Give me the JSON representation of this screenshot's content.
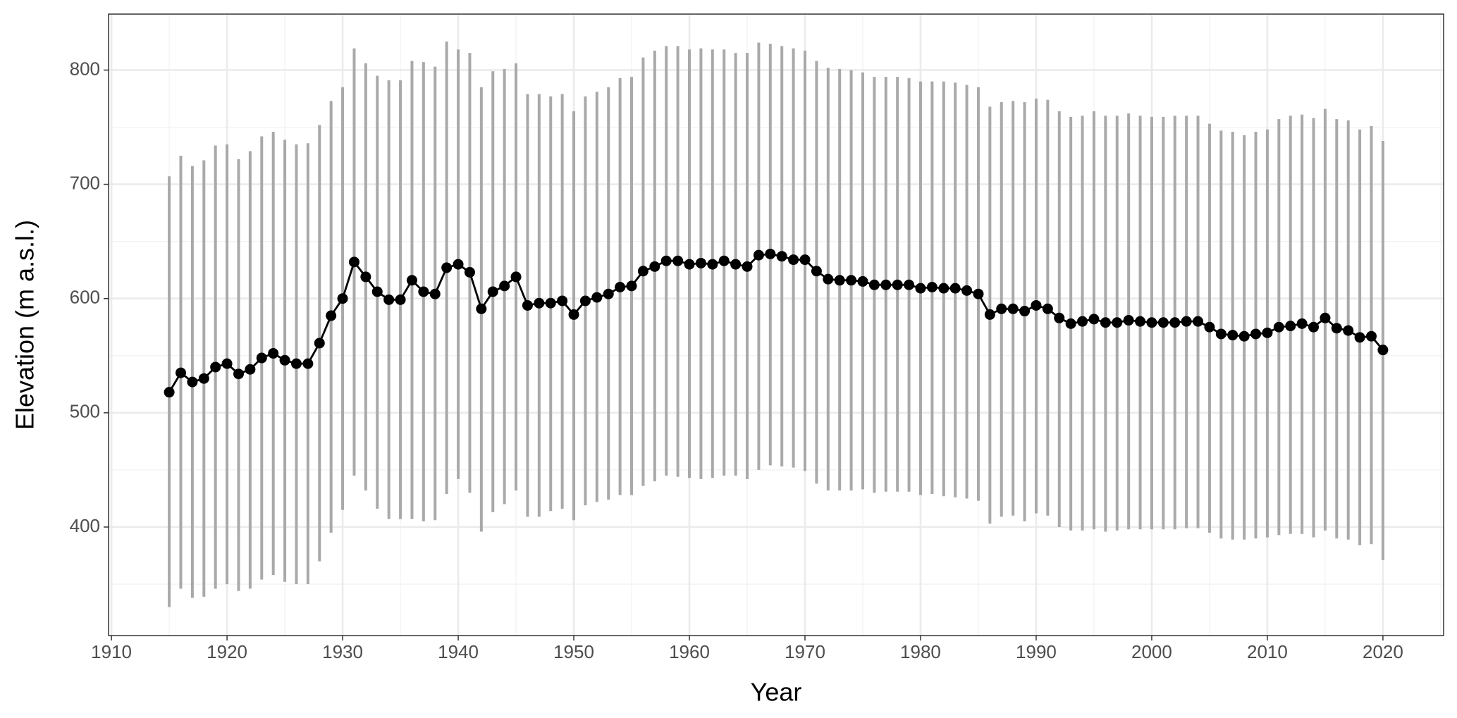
{
  "chart_data": {
    "type": "line",
    "xlabel": "Year",
    "ylabel": "Elevation (m a.s.l.)",
    "x": [
      1915,
      1916,
      1917,
      1918,
      1919,
      1920,
      1921,
      1922,
      1923,
      1924,
      1925,
      1926,
      1927,
      1928,
      1929,
      1930,
      1931,
      1932,
      1933,
      1934,
      1935,
      1936,
      1937,
      1938,
      1939,
      1940,
      1941,
      1942,
      1943,
      1944,
      1945,
      1946,
      1947,
      1948,
      1949,
      1950,
      1951,
      1952,
      1953,
      1954,
      1955,
      1956,
      1957,
      1958,
      1959,
      1960,
      1961,
      1962,
      1963,
      1964,
      1965,
      1966,
      1967,
      1968,
      1969,
      1970,
      1971,
      1972,
      1973,
      1974,
      1975,
      1976,
      1977,
      1978,
      1979,
      1980,
      1981,
      1982,
      1983,
      1984,
      1985,
      1986,
      1987,
      1988,
      1989,
      1990,
      1991,
      1992,
      1993,
      1994,
      1995,
      1996,
      1997,
      1998,
      1999,
      2000,
      2001,
      2002,
      2003,
      2004,
      2005,
      2006,
      2007,
      2008,
      2009,
      2010,
      2011,
      2012,
      2013,
      2014,
      2015,
      2016,
      2017,
      2018,
      2019,
      2020
    ],
    "values": [
      518,
      535,
      527,
      530,
      540,
      543,
      534,
      538,
      548,
      552,
      546,
      543,
      543,
      561,
      585,
      600,
      632,
      619,
      606,
      599,
      599,
      616,
      606,
      604,
      627,
      630,
      623,
      591,
      606,
      611,
      619,
      594,
      596,
      596,
      598,
      586,
      598,
      601,
      604,
      610,
      611,
      624,
      628,
      633,
      633,
      630,
      631,
      630,
      633,
      630,
      628,
      638,
      639,
      637,
      634,
      634,
      624,
      617,
      616,
      616,
      615,
      612,
      612,
      612,
      612,
      609,
      610,
      609,
      609,
      607,
      604,
      586,
      591,
      591,
      589,
      594,
      591,
      583,
      578,
      580,
      582,
      579,
      579,
      581,
      580,
      579,
      579,
      579,
      580,
      580,
      575,
      569,
      568,
      567,
      569,
      570,
      575,
      576,
      578,
      575,
      583,
      574,
      572,
      566,
      567,
      555
    ],
    "low": [
      330,
      346,
      338,
      339,
      346,
      350,
      344,
      346,
      354,
      358,
      352,
      350,
      350,
      370,
      395,
      415,
      445,
      432,
      416,
      407,
      407,
      407,
      405,
      406,
      429,
      442,
      430,
      396,
      413,
      420,
      432,
      409,
      409,
      414,
      416,
      406,
      419,
      422,
      424,
      428,
      428,
      436,
      440,
      445,
      444,
      443,
      442,
      443,
      445,
      445,
      442,
      450,
      454,
      453,
      452,
      449,
      438,
      432,
      432,
      432,
      433,
      430,
      431,
      431,
      431,
      428,
      429,
      427,
      426,
      425,
      423,
      403,
      409,
      410,
      405,
      412,
      410,
      400,
      397,
      397,
      398,
      396,
      397,
      398,
      398,
      398,
      398,
      398,
      399,
      399,
      395,
      390,
      389,
      389,
      390,
      391,
      393,
      394,
      394,
      391,
      397,
      390,
      389,
      384,
      385,
      371
    ],
    "high": [
      707,
      725,
      716,
      721,
      734,
      735,
      722,
      729,
      742,
      746,
      739,
      735,
      736,
      752,
      773,
      785,
      819,
      806,
      795,
      791,
      791,
      808,
      807,
      803,
      825,
      818,
      815,
      785,
      799,
      801,
      806,
      779,
      779,
      777,
      779,
      764,
      777,
      781,
      785,
      793,
      794,
      811,
      817,
      821,
      821,
      818,
      819,
      818,
      818,
      815,
      815,
      824,
      823,
      821,
      819,
      817,
      808,
      802,
      801,
      800,
      798,
      794,
      794,
      794,
      793,
      790,
      790,
      790,
      789,
      787,
      785,
      768,
      772,
      773,
      772,
      775,
      774,
      764,
      759,
      760,
      764,
      760,
      760,
      762,
      760,
      759,
      759,
      760,
      760,
      760,
      753,
      747,
      746,
      743,
      746,
      748,
      757,
      760,
      761,
      758,
      766,
      757,
      756,
      748,
      751,
      738
    ],
    "color": "#000000",
    "range_color": "#a9a9a9",
    "xlim": [
      1909.75,
      2025.25
    ],
    "ylim": [
      305,
      849
    ],
    "xticks": [
      1910,
      1920,
      1930,
      1940,
      1950,
      1960,
      1970,
      1980,
      1990,
      2000,
      2010,
      2020
    ],
    "yticks": [
      400,
      500,
      600,
      700,
      800
    ],
    "grid": true
  }
}
